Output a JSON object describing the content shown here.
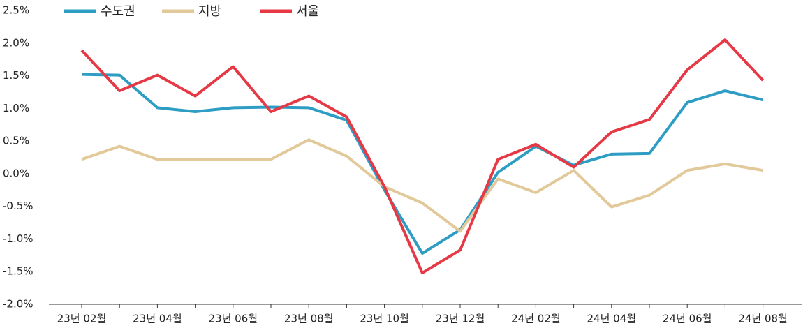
{
  "chart_data": {
    "type": "line",
    "categories": [
      "23년 02월",
      null,
      "23년 04월",
      null,
      "23년 06월",
      null,
      "23년 08월",
      null,
      "23년 10월",
      null,
      "23년 12월",
      null,
      "24년 02월",
      null,
      "24년 04월",
      null,
      "24년 06월",
      null,
      "24년 08월"
    ],
    "series": [
      {
        "name": "수도권",
        "color": "#2e9dc4",
        "values": [
          1.52,
          1.51,
          1.01,
          0.95,
          1.01,
          1.02,
          1.01,
          0.82,
          -0.25,
          -1.22,
          -0.86,
          0.02,
          0.42,
          0.13,
          0.3,
          0.31,
          1.09,
          1.27,
          1.13
        ]
      },
      {
        "name": "지방",
        "color": "#e2c99a",
        "values": [
          0.22,
          0.42,
          0.22,
          0.22,
          0.22,
          0.22,
          0.52,
          0.27,
          -0.2,
          -0.45,
          -0.88,
          -0.08,
          -0.29,
          0.05,
          -0.51,
          -0.33,
          0.05,
          0.15,
          0.05
        ]
      },
      {
        "name": "서울",
        "color": "#e63946",
        "values": [
          1.89,
          1.27,
          1.51,
          1.19,
          1.64,
          0.95,
          1.19,
          0.87,
          -0.2,
          -1.52,
          -1.17,
          0.22,
          0.45,
          0.1,
          0.64,
          0.83,
          1.59,
          2.05,
          1.43
        ]
      }
    ],
    "ylim": [
      -2.0,
      2.5
    ],
    "yticks": [
      {
        "value": -2.0,
        "label": "-2.0%"
      },
      {
        "value": -1.5,
        "label": "-1.5%"
      },
      {
        "value": -1.0,
        "label": "-1.0%"
      },
      {
        "value": -0.5,
        "label": "-0.5%"
      },
      {
        "value": 0,
        "label": "0.0%"
      },
      {
        "value": 0.5,
        "label": "0.5%"
      },
      {
        "value": 1.0,
        "label": "1.0%"
      },
      {
        "value": 1.5,
        "label": "1.5%"
      },
      {
        "value": 2.0,
        "label": "2.0%"
      },
      {
        "value": 2.5,
        "label": "2.5%"
      }
    ],
    "legend": "top-left"
  }
}
